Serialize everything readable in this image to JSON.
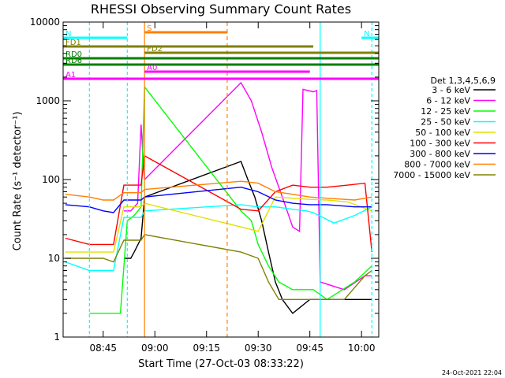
{
  "chart_data": {
    "type": "line",
    "title": "RHESSI Observing Summary Count Rates",
    "xlabel": "Start Time (27-Oct-03 08:33:22)",
    "ylabel": "Count Rate (s⁻¹ detector⁻¹)",
    "x_ticks": [
      "08:45",
      "09:00",
      "09:15",
      "09:30",
      "09:45",
      "10:00"
    ],
    "x_range": [
      "08:33:22",
      "10:05:00"
    ],
    "y_scale": "log",
    "y_range": [
      1,
      10000
    ],
    "y_ticks": [
      "1",
      "10",
      "100",
      "1000",
      "10000"
    ],
    "legend_title": "Det 1,3,4,5,6,9",
    "legend_position": "right",
    "timestamp": "24-Oct-2021 22:04",
    "series": [
      {
        "name": "3 - 6 keV",
        "color": "#000000",
        "points": [
          [
            "08:51",
            10
          ],
          [
            "08:53",
            10
          ],
          [
            "08:54",
            12
          ],
          [
            "08:56",
            18
          ],
          [
            "08:57",
            60
          ],
          [
            "09:25",
            170
          ],
          [
            "09:27",
            100
          ],
          [
            "09:29",
            60
          ],
          [
            "09:31",
            30
          ],
          [
            "09:33",
            12
          ],
          [
            "09:35",
            5
          ],
          [
            "09:37",
            3
          ],
          [
            "09:40",
            2
          ],
          [
            "09:45",
            3
          ],
          [
            "09:48",
            3
          ],
          [
            "10:03",
            3
          ]
        ]
      },
      {
        "name": "6 - 12 keV",
        "color": "#ff00ff",
        "points": [
          [
            "08:51",
            40
          ],
          [
            "08:53",
            40
          ],
          [
            "08:55",
            50
          ],
          [
            "08:56",
            500
          ],
          [
            "08:57",
            100
          ],
          [
            "09:25",
            1700
          ],
          [
            "09:28",
            1000
          ],
          [
            "09:31",
            400
          ],
          [
            "09:34",
            140
          ],
          [
            "09:37",
            60
          ],
          [
            "09:40",
            25
          ],
          [
            "09:42",
            22
          ],
          [
            "09:43",
            1400
          ],
          [
            "09:46",
            1300
          ],
          [
            "09:47",
            1350
          ],
          [
            "09:48",
            5
          ],
          [
            "09:55",
            4
          ],
          [
            "10:01",
            6
          ],
          [
            "10:03",
            6
          ]
        ]
      },
      {
        "name": "12 - 25 keV",
        "color": "#00ff00",
        "points": [
          [
            "08:41",
            2
          ],
          [
            "08:50",
            2
          ],
          [
            "08:52",
            30
          ],
          [
            "08:54",
            35
          ],
          [
            "08:56",
            45
          ],
          [
            "08:57",
            1500
          ],
          [
            "09:25",
            40
          ],
          [
            "09:28",
            30
          ],
          [
            "09:30",
            15
          ],
          [
            "09:33",
            8
          ],
          [
            "09:36",
            5
          ],
          [
            "09:40",
            4
          ],
          [
            "09:44",
            4
          ],
          [
            "09:46",
            4
          ],
          [
            "09:50",
            3
          ],
          [
            "09:58",
            5
          ],
          [
            "10:03",
            8
          ]
        ]
      },
      {
        "name": "25 - 50 keV",
        "color": "#00ffff",
        "points": [
          [
            "08:34",
            9
          ],
          [
            "08:41",
            7
          ],
          [
            "08:45",
            7
          ],
          [
            "08:48",
            7
          ],
          [
            "08:51",
            33
          ],
          [
            "08:56",
            33
          ],
          [
            "08:57",
            40
          ],
          [
            "09:25",
            48
          ],
          [
            "09:30",
            45
          ],
          [
            "09:35",
            45
          ],
          [
            "09:40",
            42
          ],
          [
            "09:44",
            40
          ],
          [
            "09:46",
            38
          ],
          [
            "09:52",
            28
          ],
          [
            "09:58",
            35
          ],
          [
            "10:03",
            45
          ]
        ]
      },
      {
        "name": "50 - 100 keV",
        "color": "#e0e000",
        "points": [
          [
            "08:34",
            12
          ],
          [
            "08:41",
            12
          ],
          [
            "08:45",
            12
          ],
          [
            "08:48",
            12
          ],
          [
            "08:51",
            45
          ],
          [
            "08:56",
            45
          ],
          [
            "08:57",
            50
          ],
          [
            "09:25",
            25
          ],
          [
            "09:30",
            22
          ],
          [
            "09:35",
            60
          ],
          [
            "09:40",
            58
          ],
          [
            "09:45",
            56
          ],
          [
            "09:50",
            55
          ],
          [
            "09:56",
            52
          ],
          [
            "10:03",
            40
          ]
        ]
      },
      {
        "name": "100 - 300 keV",
        "color": "#ff0000",
        "points": [
          [
            "08:34",
            18
          ],
          [
            "08:41",
            15
          ],
          [
            "08:45",
            15
          ],
          [
            "08:48",
            15
          ],
          [
            "08:51",
            85
          ],
          [
            "08:56",
            85
          ],
          [
            "08:57",
            200
          ],
          [
            "09:25",
            42
          ],
          [
            "09:30",
            40
          ],
          [
            "09:35",
            70
          ],
          [
            "09:40",
            85
          ],
          [
            "09:45",
            80
          ],
          [
            "09:50",
            80
          ],
          [
            "09:56",
            85
          ],
          [
            "10:01",
            90
          ],
          [
            "10:03",
            12
          ]
        ]
      },
      {
        "name": "300 - 800 keV",
        "color": "#0000ff",
        "points": [
          [
            "08:34",
            48
          ],
          [
            "08:41",
            45
          ],
          [
            "08:45",
            40
          ],
          [
            "08:48",
            38
          ],
          [
            "08:51",
            55
          ],
          [
            "08:56",
            55
          ],
          [
            "08:57",
            60
          ],
          [
            "09:25",
            80
          ],
          [
            "09:30",
            70
          ],
          [
            "09:35",
            55
          ],
          [
            "09:40",
            50
          ],
          [
            "09:45",
            48
          ],
          [
            "09:50",
            48
          ],
          [
            "09:58",
            45
          ],
          [
            "10:03",
            45
          ]
        ]
      },
      {
        "name": "800 - 7000 keV",
        "color": "#ff8000",
        "points": [
          [
            "08:34",
            65
          ],
          [
            "08:41",
            60
          ],
          [
            "08:45",
            55
          ],
          [
            "08:48",
            55
          ],
          [
            "08:51",
            68
          ],
          [
            "08:56",
            68
          ],
          [
            "08:57",
            75
          ],
          [
            "09:25",
            95
          ],
          [
            "09:30",
            90
          ],
          [
            "09:35",
            70
          ],
          [
            "09:40",
            65
          ],
          [
            "09:45",
            60
          ],
          [
            "09:50",
            58
          ],
          [
            "09:58",
            55
          ],
          [
            "10:03",
            60
          ]
        ]
      },
      {
        "name": "7000 - 15000 keV",
        "color": "#808000",
        "points": [
          [
            "08:34",
            10
          ],
          [
            "08:41",
            10
          ],
          [
            "08:45",
            10
          ],
          [
            "08:48",
            9
          ],
          [
            "08:51",
            17
          ],
          [
            "08:56",
            17
          ],
          [
            "08:57",
            20
          ],
          [
            "09:25",
            12
          ],
          [
            "09:30",
            10
          ],
          [
            "09:33",
            5
          ],
          [
            "09:36",
            3
          ],
          [
            "09:40",
            3
          ],
          [
            "09:48",
            3
          ],
          [
            "09:55",
            3
          ],
          [
            "10:01",
            6
          ],
          [
            "10:03",
            7
          ]
        ]
      }
    ],
    "flags": [
      {
        "label": "S",
        "color": "#ff8000",
        "start": "08:57",
        "end": "09:21"
      },
      {
        "label": "N",
        "color": "#00ffff",
        "start": "08:33:22",
        "end": "08:52"
      },
      {
        "label": "N",
        "color": "#00ffff",
        "start": "10:00",
        "end": "10:05"
      },
      {
        "label": "FD1",
        "color": "#808000",
        "start": "08:33:22",
        "end": "09:46"
      },
      {
        "label": "FD2",
        "color": "#808000",
        "start": "08:57",
        "end": "10:05"
      },
      {
        "label": "RD0",
        "color": "#008000",
        "start": "08:33:22",
        "end": "10:05"
      },
      {
        "label": "RD6",
        "color": "#008000",
        "start": "08:33:22",
        "end": "10:05"
      },
      {
        "label": "A0",
        "color": "#ff00ff",
        "start": "08:57",
        "end": "09:45"
      },
      {
        "label": "A1",
        "color": "#ff00ff",
        "start": "08:33:22",
        "end": "10:05"
      }
    ]
  }
}
